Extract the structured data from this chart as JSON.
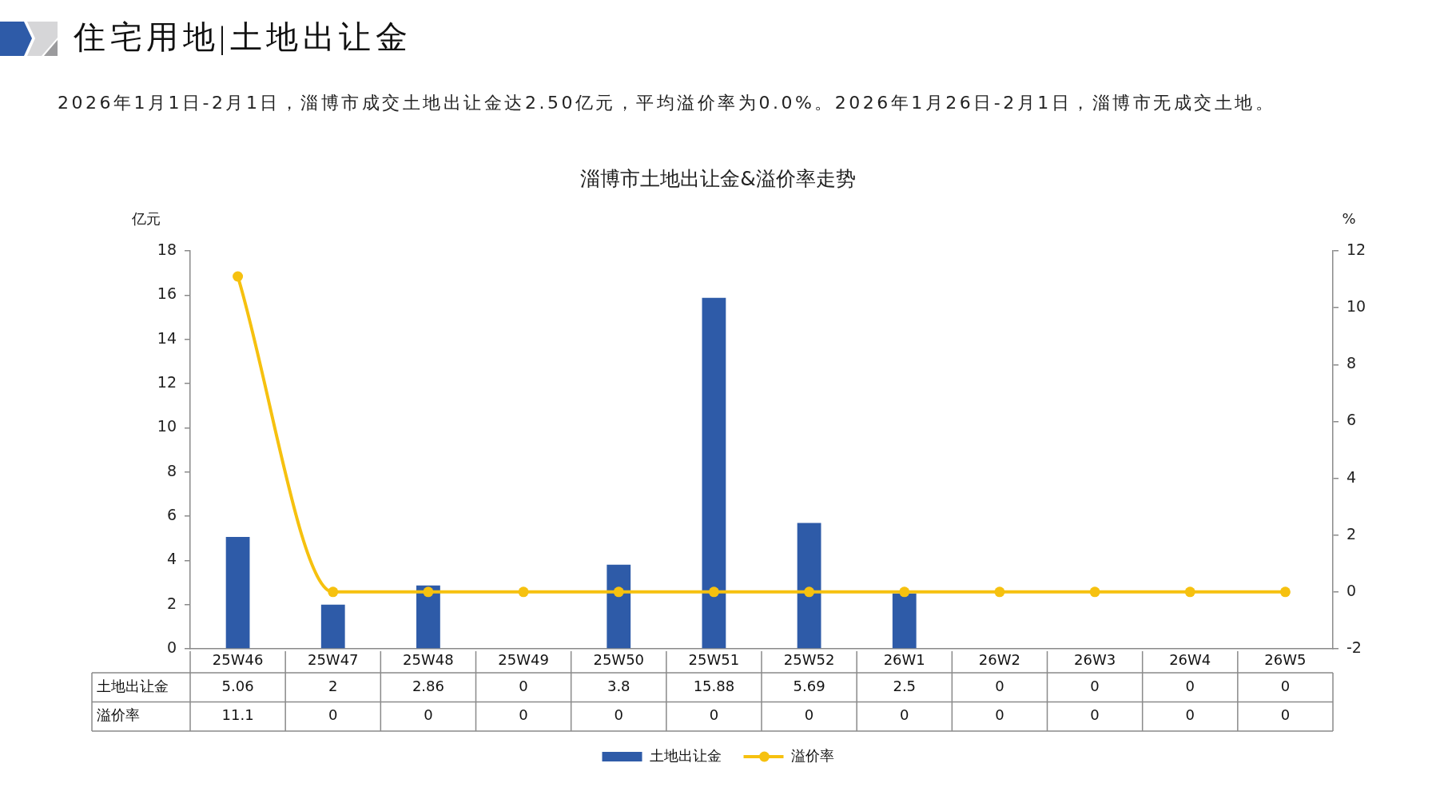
{
  "chart_data": {
    "type": "bar",
    "title": "住宅用地|土地出让金",
    "subtitle": "淄博市土地出让金&溢价率走势",
    "annotations": [
      "2026年1月1日-2月1日，淄博市成交土地出让金达2.50亿元，平均溢价率为0.0%。2026年1月26日-2月1日，淄博市无成交土地。"
    ],
    "ylabel": "亿元",
    "y2label": "%",
    "categories": [
      "25W46",
      "25W47",
      "25W48",
      "25W49",
      "25W50",
      "25W51",
      "25W52",
      "26W1",
      "26W2",
      "26W3",
      "26W4",
      "26W5"
    ],
    "series": [
      {
        "name": "土地出让金",
        "type": "bar",
        "color": "#2e5ba8",
        "values": [
          5.06,
          2,
          2.86,
          0,
          3.8,
          15.88,
          5.69,
          2.5,
          0,
          0,
          0,
          0
        ]
      },
      {
        "name": "溢价率",
        "type": "line",
        "axis": "y2",
        "color": "#f6c10f",
        "values": [
          11.1,
          0,
          0,
          0,
          0,
          0,
          0,
          0,
          0,
          0,
          0,
          0
        ]
      }
    ],
    "ylim": [
      0,
      18
    ],
    "yticks": [
      0,
      2,
      4,
      6,
      8,
      10,
      12,
      14,
      16,
      18
    ],
    "y2lim": [
      -2,
      12
    ],
    "y2ticks": [
      -2,
      0,
      2,
      4,
      6,
      8,
      10,
      12
    ],
    "data_labels": true,
    "legend": "bottom",
    "marker": "circle"
  }
}
